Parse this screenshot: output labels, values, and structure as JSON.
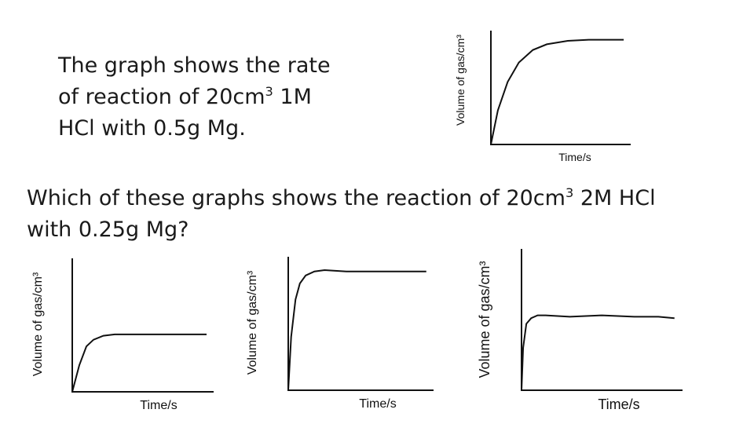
{
  "intro": {
    "line1": "The graph shows the rate",
    "line2_pre": "of reaction of 20cm",
    "line2_sup": "3",
    "line2_post": " 1M",
    "line3": "HCl with 0.5g Mg."
  },
  "question": {
    "line1_pre": "Which of these graphs shows the reaction of 20cm",
    "line1_sup": "3",
    "line1_post": " 2M HCl",
    "line2": "with 0.25g Mg?"
  },
  "chart_data": [
    {
      "type": "line",
      "xlabel": "Time/s",
      "ylabel": "Volume of gas/cm³",
      "series": [
        {
          "x": [
            0,
            0.05,
            0.12,
            0.2,
            0.3,
            0.4,
            0.55,
            0.7,
            0.85,
            0.95
          ],
          "y": [
            0,
            0.3,
            0.55,
            0.72,
            0.83,
            0.88,
            0.91,
            0.92,
            0.92,
            0.92
          ]
        }
      ]
    },
    {
      "type": "line",
      "xlabel": "Time/s",
      "ylabel": "Volume of gas/cm³",
      "series": [
        {
          "x": [
            0,
            0.05,
            0.1,
            0.15,
            0.22,
            0.3,
            0.45,
            0.6,
            0.8,
            0.95
          ],
          "y": [
            0,
            0.2,
            0.34,
            0.39,
            0.42,
            0.43,
            0.43,
            0.43,
            0.43,
            0.43
          ]
        }
      ]
    },
    {
      "type": "line",
      "xlabel": "Time/s",
      "ylabel": "Volume of gas/cm³",
      "series": [
        {
          "x": [
            0,
            0.02,
            0.05,
            0.08,
            0.12,
            0.18,
            0.25,
            0.4,
            0.6,
            0.8,
            0.95
          ],
          "y": [
            0,
            0.4,
            0.68,
            0.8,
            0.86,
            0.89,
            0.9,
            0.89,
            0.89,
            0.89,
            0.89
          ]
        }
      ]
    },
    {
      "type": "line",
      "xlabel": "Time/s",
      "ylabel": "Volume of gas/cm³",
      "series": [
        {
          "x": [
            0,
            0.01,
            0.03,
            0.06,
            0.1,
            0.15,
            0.3,
            0.5,
            0.7,
            0.85,
            0.95
          ],
          "y": [
            0,
            0.3,
            0.47,
            0.51,
            0.53,
            0.53,
            0.52,
            0.53,
            0.52,
            0.52,
            0.51
          ]
        }
      ]
    }
  ]
}
